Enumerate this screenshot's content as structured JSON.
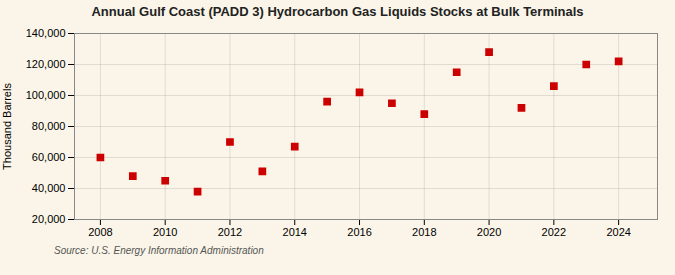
{
  "chart_data": {
    "type": "scatter",
    "title": "Annual Gulf Coast (PADD 3) Hydrocarbon Gas Liquids Stocks at Bulk Terminals",
    "ylabel": "Thousand Barrels",
    "source": "Source: U.S. Energy Information Administration",
    "x": [
      2008,
      2009,
      2010,
      2011,
      2012,
      2013,
      2014,
      2015,
      2016,
      2017,
      2018,
      2019,
      2020,
      2021,
      2022,
      2023,
      2024
    ],
    "values": [
      60000,
      48000,
      45000,
      38000,
      70000,
      51000,
      67000,
      96000,
      102000,
      95000,
      88000,
      115000,
      128000,
      92000,
      106000,
      120000,
      122000
    ],
    "color": "#cc0000",
    "marker": "square",
    "xlim": [
      2007.2,
      2025.2
    ],
    "xticks": [
      2008,
      2010,
      2012,
      2014,
      2016,
      2018,
      2020,
      2022,
      2024
    ],
    "ylim": [
      20000,
      140000
    ],
    "yticks": [
      {
        "value": 20000,
        "label": "20,000"
      },
      {
        "value": 40000,
        "label": "40,000"
      },
      {
        "value": 60000,
        "label": "60,000"
      },
      {
        "value": 80000,
        "label": "80,000"
      },
      {
        "value": 100000,
        "label": "100,000"
      },
      {
        "value": 120000,
        "label": "120,000"
      },
      {
        "value": 140000,
        "label": "140,000"
      }
    ],
    "grid": true
  }
}
